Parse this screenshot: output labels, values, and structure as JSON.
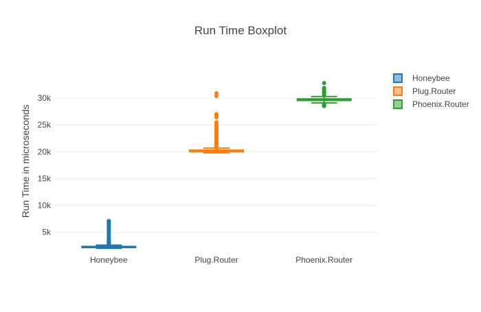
{
  "chart_data": {
    "type": "box",
    "title": "Run Time Boxplot",
    "xlabel": "",
    "ylabel": "Run Time in microseconds",
    "ylim": [
      1000,
      35500
    ],
    "yticks": [
      5000,
      10000,
      15000,
      20000,
      25000,
      30000
    ],
    "ytick_labels": [
      "5k",
      "10k",
      "15k",
      "20k",
      "25k",
      "30k"
    ],
    "categories": [
      "Honeybee",
      "Plug.Router",
      "Phoenix.Router"
    ],
    "grid": true,
    "legend_position": "top-right",
    "series": [
      {
        "name": "Honeybee",
        "color": "#1f77b4",
        "min": 2000,
        "q1": 2150,
        "median": 2250,
        "q3": 2350,
        "max": 2600,
        "outliers": [
          2700,
          2800,
          2900,
          3000,
          3100,
          3200,
          3300,
          3400,
          3500,
          3600,
          3800,
          4000,
          4200,
          4400,
          4600,
          4800,
          5000,
          5200,
          5400,
          5600,
          5800,
          6000,
          6200,
          6400,
          6600,
          6800,
          7000,
          7100
        ]
      },
      {
        "name": "Plug.Router",
        "color": "#ff7f0e",
        "min": 19800,
        "q1": 20000,
        "median": 20150,
        "q3": 20300,
        "max": 20700,
        "outliers": [
          20800,
          21000,
          21200,
          21400,
          21600,
          21800,
          22000,
          22200,
          22400,
          22600,
          22800,
          23000,
          23200,
          23400,
          23600,
          23800,
          24000,
          24200,
          24500,
          24800,
          25000,
          25300,
          25500,
          26400,
          26700,
          27000,
          30400,
          30900
        ]
      },
      {
        "name": "Phoenix.Router",
        "color": "#2ca02c",
        "min": 29100,
        "q1": 29550,
        "median": 29700,
        "q3": 29850,
        "max": 30300,
        "outliers": [
          28500,
          28600,
          28700,
          28800,
          28900,
          30500,
          30700,
          30900,
          31100,
          31300,
          31500,
          31700,
          31900,
          32800
        ]
      }
    ]
  }
}
